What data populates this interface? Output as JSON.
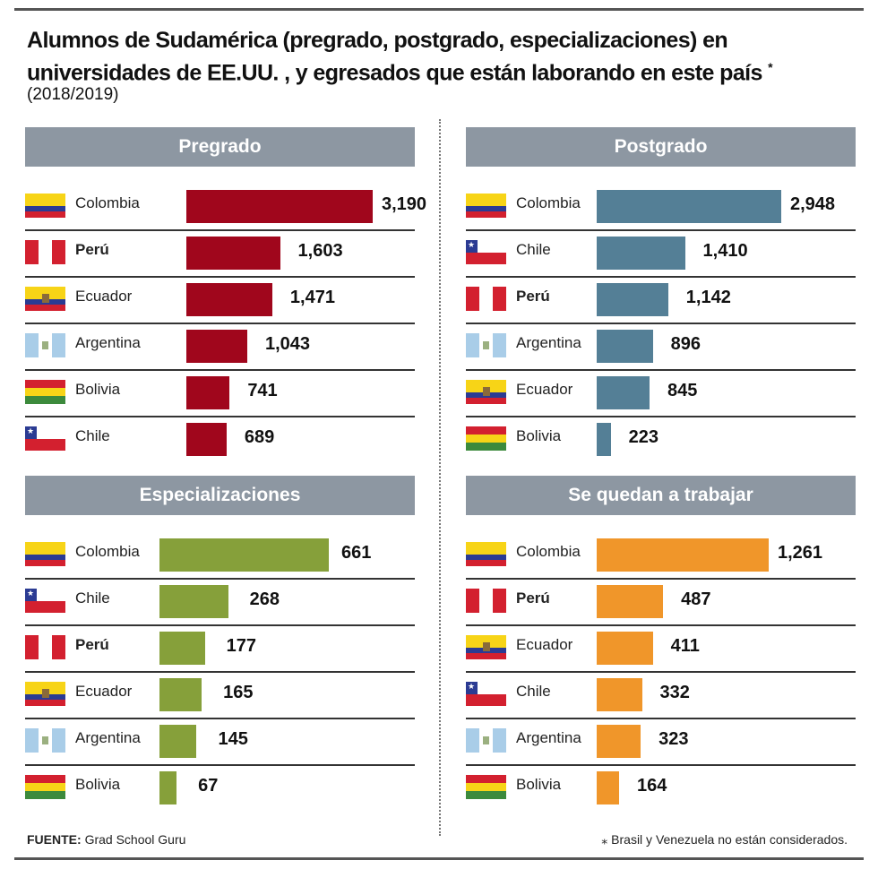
{
  "title": "Alumnos de Sudamérica (pregrado, postgrado, especializaciones) en universidades de EE.UU. , y egresados que están  laborando en este país",
  "title_mark": "*",
  "subtitle": "(2018/2019)",
  "source_label": "FUENTE:",
  "source_value": "Grad School Guru",
  "note": "⁎  Brasil y Venezuela no están considerados.",
  "chart_data": [
    {
      "type": "bar",
      "title": "Pregrado",
      "color": "#a0061c",
      "categories": [
        "Colombia",
        "Perú",
        "Ecuador",
        "Argentina",
        "Bolivia",
        "Chile"
      ],
      "labels": [
        "3,190",
        "1,603",
        "1,471",
        "1,043",
        "741",
        "689"
      ],
      "values": [
        3190,
        1603,
        1471,
        1043,
        741,
        689
      ]
    },
    {
      "type": "bar",
      "title": "Postgrado",
      "color": "#547f96",
      "categories": [
        "Colombia",
        "Chile",
        "Perú",
        "Argentina",
        "Ecuador",
        "Bolivia"
      ],
      "labels": [
        "2,948",
        "1,410",
        "1,142",
        "896",
        "845",
        "223"
      ],
      "values": [
        2948,
        1410,
        1142,
        896,
        845,
        223
      ]
    },
    {
      "type": "bar",
      "title": "Especializaciones",
      "color": "#86a03a",
      "categories": [
        "Colombia",
        "Chile",
        "Perú",
        "Ecuador",
        "Argentina",
        "Bolivia"
      ],
      "labels": [
        "661",
        "268",
        "177",
        "165",
        "145",
        "67"
      ],
      "values": [
        661,
        268,
        177,
        165,
        145,
        67
      ]
    },
    {
      "type": "bar",
      "title": "Se quedan a trabajar",
      "color": "#f0962a",
      "categories": [
        "Colombia",
        "Perú",
        "Ecuador",
        "Chile",
        "Argentina",
        "Bolivia"
      ],
      "labels": [
        "1,261",
        "487",
        "411",
        "332",
        "323",
        "164"
      ],
      "values": [
        1261,
        487,
        411,
        332,
        323,
        164
      ]
    }
  ]
}
